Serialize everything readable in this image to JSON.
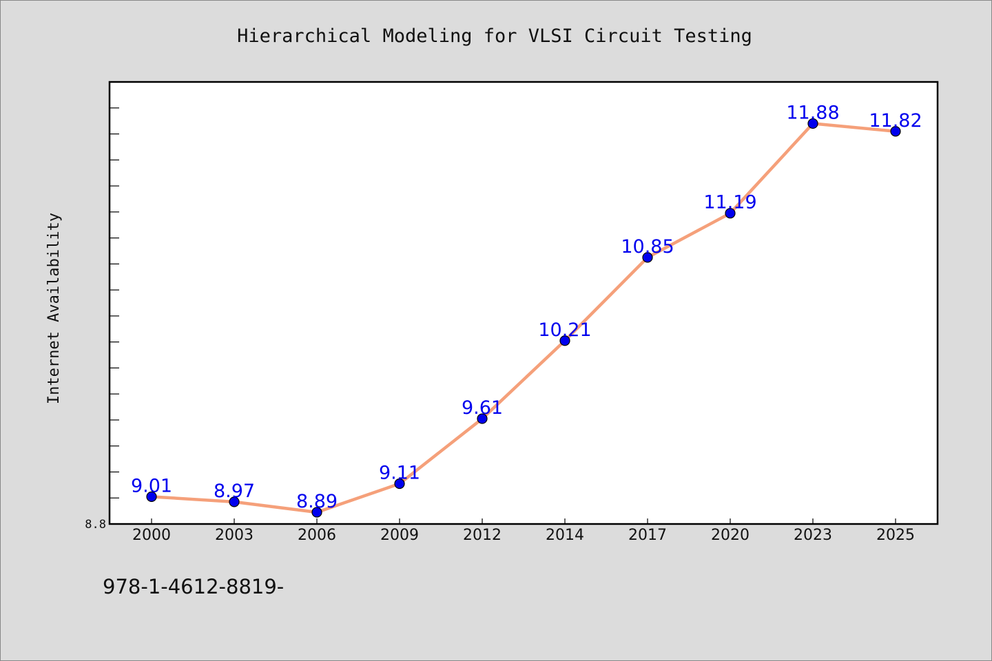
{
  "chart_data": {
    "type": "line",
    "title": "Hierarchical Modeling for VLSI Circuit Testing",
    "xlabel": "",
    "ylabel": "Internet Availability",
    "categories": [
      "2000",
      "2003",
      "2006",
      "2009",
      "2012",
      "2014",
      "2017",
      "2020",
      "2023",
      "2025"
    ],
    "series": [
      {
        "values": [
          9.01,
          8.97,
          8.89,
          9.11,
          9.61,
          10.21,
          10.85,
          11.19,
          11.88,
          11.82
        ],
        "labels": [
          "9.01",
          "8.97",
          "8.89",
          "9.11",
          "9.61",
          "10.21",
          "10.85",
          "11.19",
          "11.88",
          "11.82"
        ],
        "line_color": "#f5a07a",
        "marker_color": "#0000ee"
      }
    ],
    "ylim": [
      8.8,
      12.2
    ],
    "y_tick_labels": [
      "8.8"
    ],
    "grid": false,
    "legend": "none",
    "plot_background": "#ffffff",
    "figure_background": "#dcdcdc"
  },
  "footer": {
    "text": "978-1-4612-8819-"
  }
}
